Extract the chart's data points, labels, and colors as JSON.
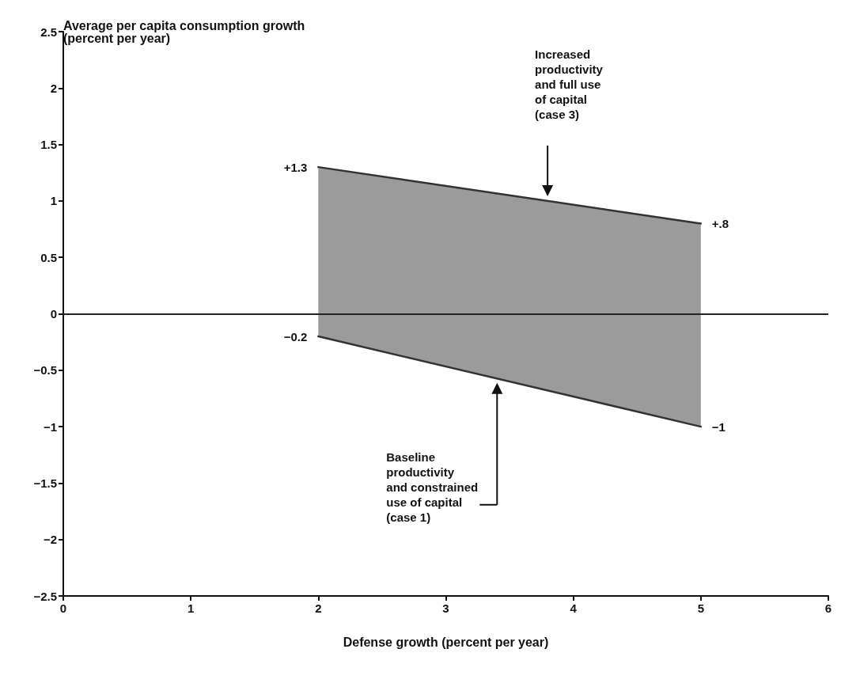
{
  "chart_data": {
    "type": "line",
    "xlabel": "Defense growth (percent per year)",
    "ylabel": "Average per capita consumption growth\n(percent per year)",
    "x": [
      2,
      5
    ],
    "series": [
      {
        "color": "#333333",
        "values": [
          1.3,
          0.8
        ],
        "value_labels": [
          "+1.3",
          "+.8"
        ],
        "lower": [
          -0.2,
          -1
        ],
        "upper": [
          1.3,
          0.8
        ]
      },
      {
        "color": "#333333",
        "values": [
          -0.2,
          -1
        ],
        "value_labels": [
          "−0.2",
          "−1"
        ]
      }
    ],
    "xlim": [
      0,
      6
    ],
    "xticks": [
      0,
      1,
      2,
      3,
      4,
      5,
      6
    ],
    "ylim": [
      -2.5,
      2.5
    ],
    "yticks": [
      -2.5,
      -2,
      -1.5,
      -1,
      -0.5,
      0,
      0.5,
      1,
      1.5,
      2,
      2.5
    ],
    "ref_lines": [
      {
        "axis": "y",
        "value": 0,
        "color": "#222222"
      }
    ],
    "annotations": [
      "Increased\nproductivity\nand full use\nof capital\n(case 3)",
      "Baseline\nproductivity\nand constrained\nuse of capital\n(case 1)"
    ],
    "grid": false,
    "marker": "none",
    "line_style": "solid"
  }
}
